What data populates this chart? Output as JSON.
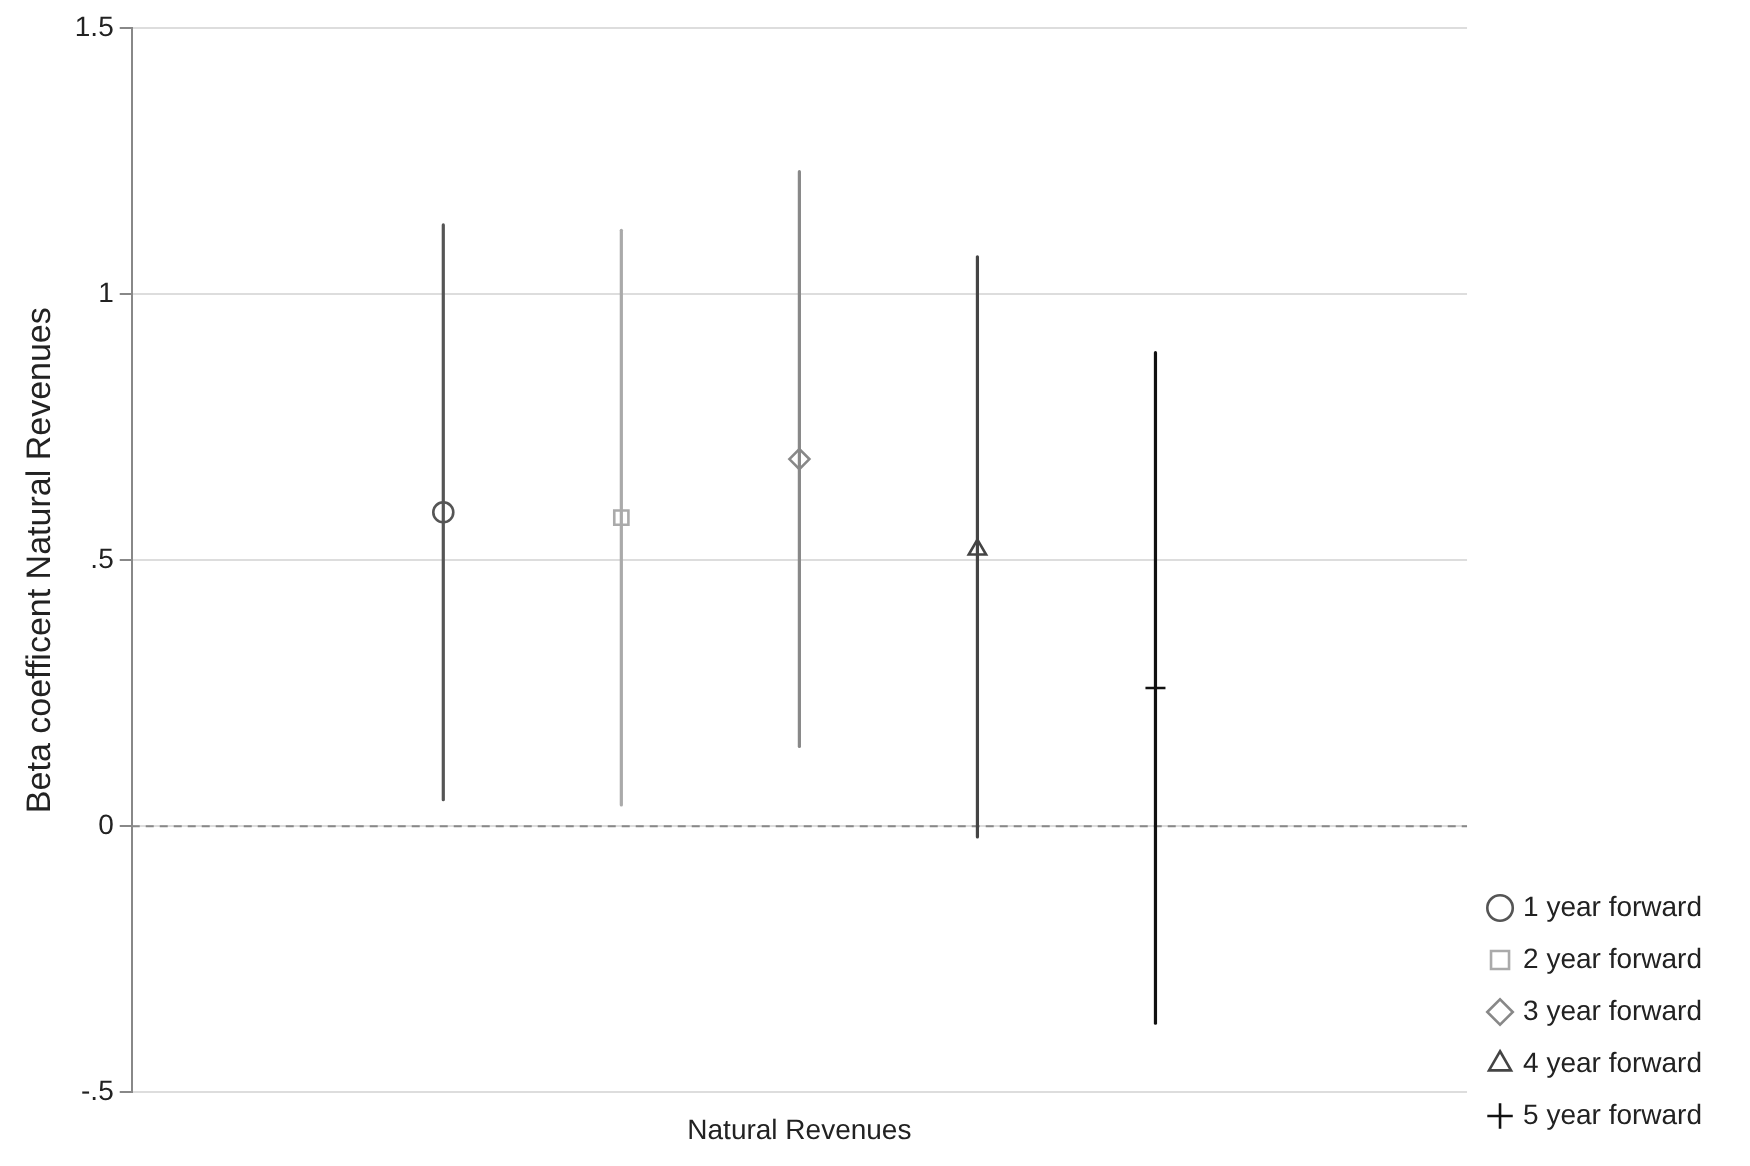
{
  "chart_data": {
    "type": "scatter",
    "ylabel": "Beta coefficent Natural Revenues",
    "categories": [
      "Natural Revenues"
    ],
    "series": [
      {
        "name": "1 year forward",
        "color": "#555555",
        "marker": "circle",
        "values": [
          0.59
        ],
        "errors": [
          [
            0.05,
            1.13
          ]
        ]
      },
      {
        "name": "2 year forward",
        "color": "#aaaaaa",
        "marker": "square",
        "values": [
          0.58
        ],
        "errors": [
          [
            0.04,
            1.12
          ]
        ]
      },
      {
        "name": "3 year forward",
        "color": "#888888",
        "marker": "diamond",
        "values": [
          0.69
        ],
        "errors": [
          [
            0.15,
            1.23
          ]
        ]
      },
      {
        "name": "4 year forward",
        "color": "#444444",
        "marker": "triangle",
        "values": [
          0.52
        ],
        "errors": [
          [
            -0.02,
            1.07
          ]
        ]
      },
      {
        "name": "5 year forward",
        "color": "#111111",
        "marker": "cross",
        "values": [
          0.26
        ],
        "errors": [
          [
            -0.37,
            0.89
          ]
        ]
      }
    ],
    "ylim": [
      -0.5,
      1.5
    ],
    "yticks": [
      {
        "value": -0.5,
        "label": "-.5"
      },
      {
        "value": 0,
        "label": "0"
      },
      {
        "value": 0.5,
        "label": ".5"
      },
      {
        "value": 1,
        "label": "1"
      },
      {
        "value": 1.5,
        "label": "1.5"
      }
    ],
    "grid": "y",
    "legend": "bottom right",
    "ref_lines": [
      {
        "axis": "y",
        "value": 0,
        "line_style": "dashed",
        "color": "#888888"
      }
    ]
  }
}
